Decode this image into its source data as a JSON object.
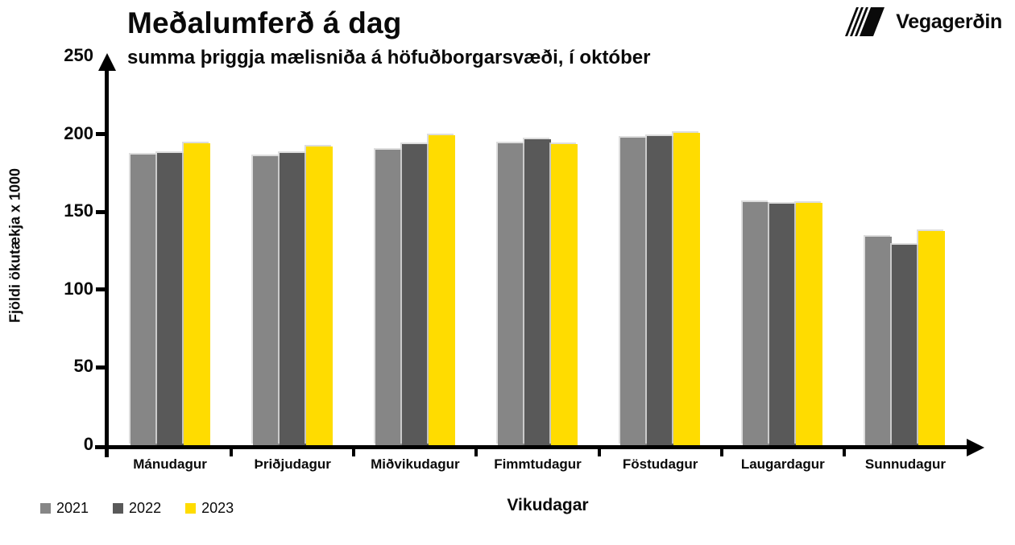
{
  "logo": {
    "text": "Vegagerðin"
  },
  "chart_data": {
    "type": "bar",
    "title": "Meðalumferð á dag",
    "subtitle": "summa þriggja mælisniða á höfuðborgarsvæði, í október",
    "xlabel": "Vikudagar",
    "ylabel": "Fjöldi ökutækja x 1000",
    "ylim": [
      0,
      250
    ],
    "yticks": [
      0,
      50,
      100,
      150,
      200,
      250
    ],
    "grid": false,
    "legend_position": "bottom-left",
    "categories": [
      "Mánudagur",
      "Þriðjudagur",
      "Miðvikudagur",
      "Fimmtudagur",
      "Föstudagur",
      "Laugardagur",
      "Sunnudagur"
    ],
    "series": [
      {
        "name": "2021",
        "color": "#868686",
        "values": [
          187,
          186,
          190,
          194,
          197.5,
          156.5,
          134
        ]
      },
      {
        "name": "2022",
        "color": "#595959",
        "values": [
          188,
          188,
          193.5,
          196.5,
          199,
          155.5,
          129
        ]
      },
      {
        "name": "2023",
        "color": "#FFDC00",
        "values": [
          194,
          192,
          199.5,
          193.5,
          201,
          156,
          137.5
        ]
      }
    ],
    "axis_color": "#000000"
  }
}
